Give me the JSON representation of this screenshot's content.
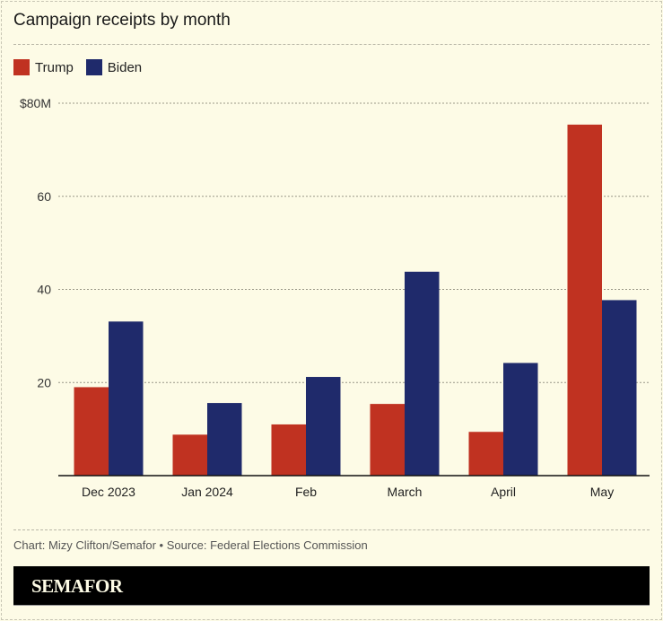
{
  "chart_data": {
    "type": "bar",
    "title": "Campaign receipts by month",
    "categories": [
      "Dec 2023",
      "Jan 2024",
      "Feb",
      "March",
      "April",
      "May"
    ],
    "series": [
      {
        "name": "Trump",
        "color": "#c03221",
        "values": [
          19.0,
          8.8,
          11.0,
          15.4,
          9.4,
          75.4
        ]
      },
      {
        "name": "Biden",
        "color": "#1f2a6b",
        "values": [
          33.1,
          15.6,
          21.2,
          43.8,
          24.2,
          37.7
        ]
      }
    ],
    "yticks": [
      {
        "value": 20,
        "label": "20"
      },
      {
        "value": 40,
        "label": "40"
      },
      {
        "value": 60,
        "label": "60"
      },
      {
        "value": 80,
        "label": "$80M"
      }
    ],
    "ylim": [
      0,
      80
    ],
    "unit": "millions of dollars",
    "grid": true,
    "legend": "top-left"
  },
  "footer": {
    "credit": "Chart: Mizy Clifton/Semafor  • Source: Federal Elections Commission",
    "brand": "SEMAFOR"
  }
}
